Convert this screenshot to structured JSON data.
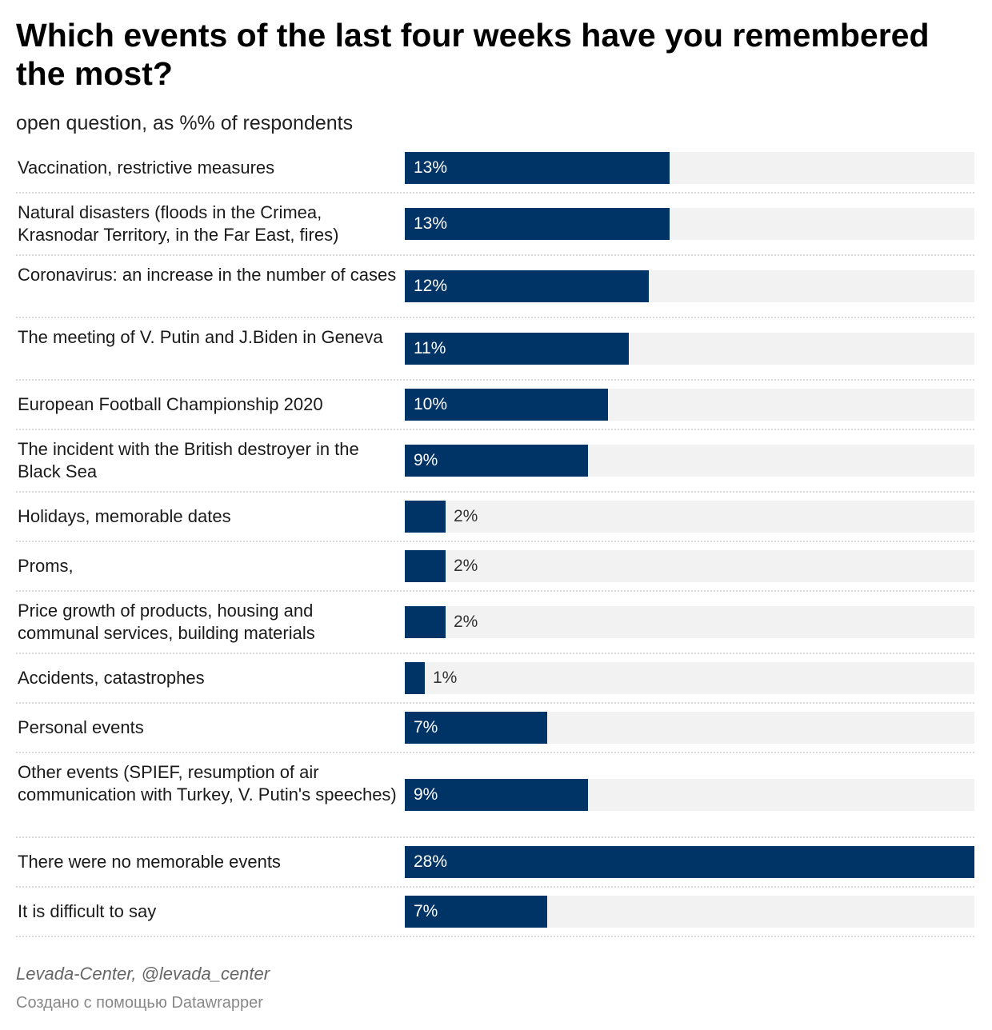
{
  "title": "Which events of the last four weeks have you remembered the most?",
  "subtitle": "open question, as %% of respondents",
  "source": "Levada-Center, @levada_center",
  "credit": "Создано с помощью Datawrapper",
  "colors": {
    "bar": "#003366",
    "track": "#f2f2f2"
  },
  "chart_data": {
    "type": "bar",
    "orientation": "horizontal",
    "title": "Which events of the last four weeks have you remembered the most?",
    "subtitle": "open question, as %% of respondents",
    "unit": "%",
    "xlim": [
      0,
      28
    ],
    "categories": [
      "Vaccination, restrictive measures",
      "Natural disasters (floods in the Crimea, Krasnodar Territory, in the Far East, fires)",
      "Coronavirus: an increase in the number of cases",
      "The meeting of V. Putin and J.Biden in Geneva",
      "European Football Championship 2020",
      "The incident with the British destroyer in the Black Sea",
      "Holidays, memorable dates",
      "Proms,",
      "Price growth of products, housing and communal services, building materials",
      "Accidents, catastrophes",
      "Personal events",
      "Other events (SPIEF, resumption of air communication with Turkey, V. Putin's speeches)",
      "There were no memorable events",
      "It is difficult to say"
    ],
    "values": [
      13,
      13,
      12,
      11,
      10,
      9,
      2,
      2,
      2,
      1,
      7,
      9,
      28,
      7
    ],
    "labels": [
      "13%",
      "13%",
      "12%",
      "11%",
      "10%",
      "9%",
      "2%",
      "2%",
      "2%",
      "1%",
      "7%",
      "9%",
      "28%",
      "7%"
    ]
  }
}
